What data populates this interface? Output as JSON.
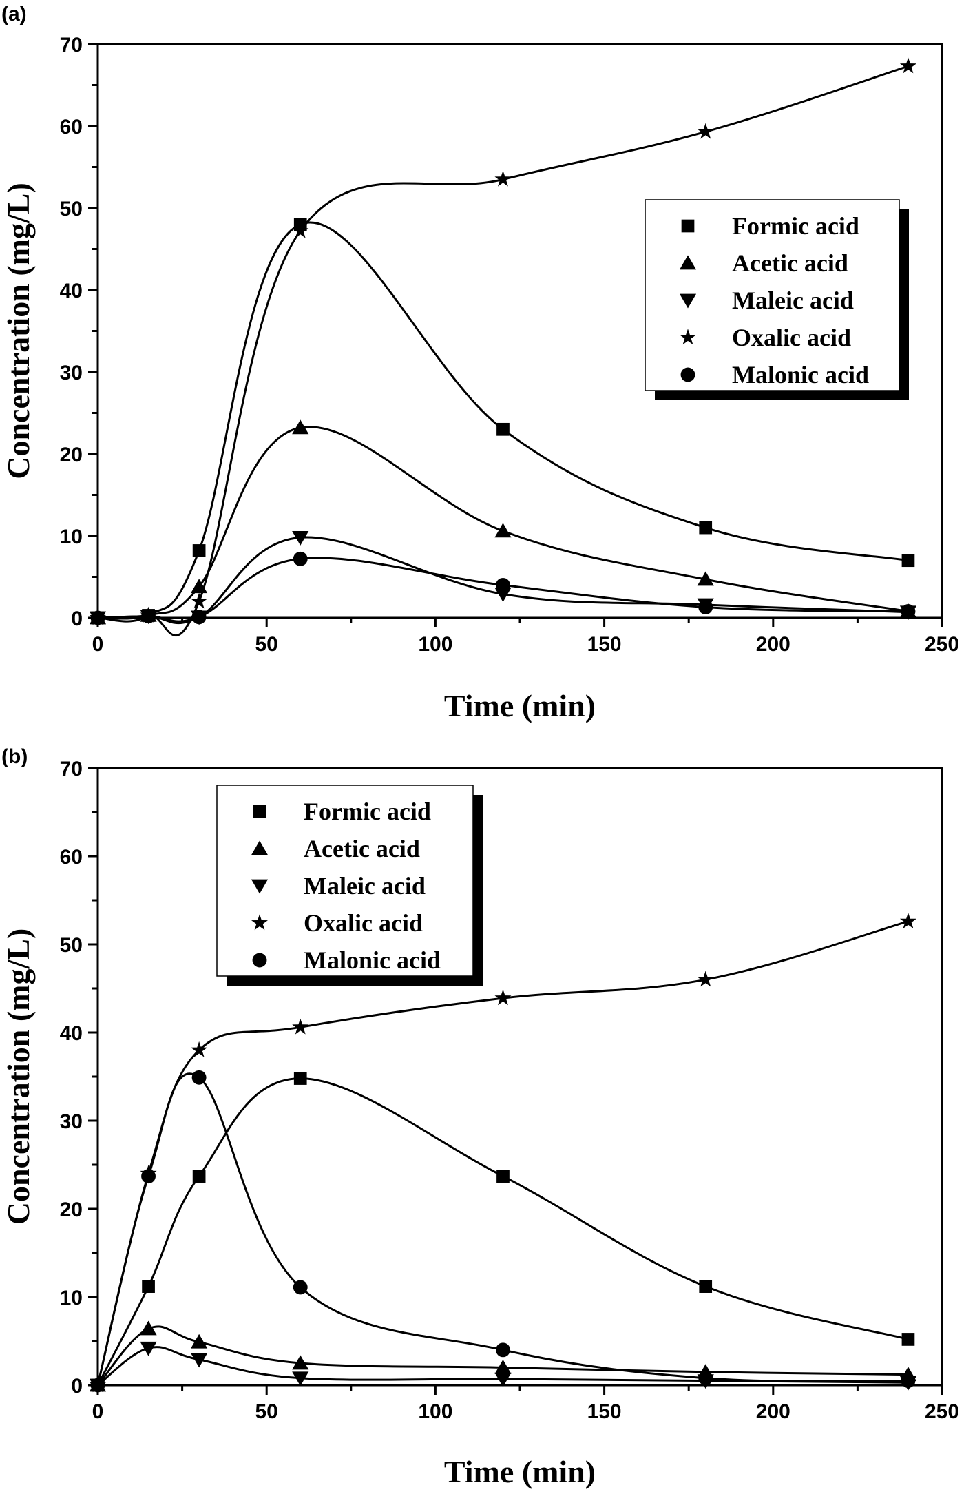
{
  "chart_data": [
    {
      "panel_label": "(a)",
      "type": "line",
      "xlabel": "Time (min)",
      "ylabel": "Concentration (mg/L)",
      "xlim": [
        0,
        250
      ],
      "ylim": [
        0,
        70
      ],
      "xticks": [
        "0",
        "50",
        "100",
        "150",
        "200",
        "250"
      ],
      "yticks": [
        "0",
        "10",
        "20",
        "30",
        "40",
        "50",
        "60",
        "70"
      ],
      "grid": false,
      "legend_placement": "center-right",
      "x": [
        0,
        15,
        30,
        60,
        120,
        180,
        240
      ],
      "series": [
        {
          "name": "Formic acid",
          "marker": "square",
          "values": [
            0,
            0.3,
            8.2,
            48.0,
            23.0,
            11.0,
            7.0
          ]
        },
        {
          "name": "Acetic acid",
          "marker": "triangle-up",
          "values": [
            0,
            0.3,
            3.8,
            23.2,
            10.6,
            4.7,
            0.8
          ]
        },
        {
          "name": "Maleic acid",
          "marker": "triangle-down",
          "values": [
            0,
            0.2,
            0.1,
            9.8,
            2.9,
            1.6,
            0.7
          ]
        },
        {
          "name": "Oxalic acid",
          "marker": "star",
          "values": [
            0,
            0.3,
            2.0,
            47.2,
            53.5,
            59.3,
            67.3
          ]
        },
        {
          "name": "Malonic acid",
          "marker": "circle",
          "values": [
            0,
            0.2,
            0.1,
            7.2,
            4.0,
            1.3,
            0.8
          ]
        }
      ]
    },
    {
      "panel_label": "(b)",
      "type": "line",
      "xlabel": "Time (min)",
      "ylabel": "Concentration (mg/L)",
      "xlim": [
        0,
        250
      ],
      "ylim": [
        0,
        70
      ],
      "xticks": [
        "0",
        "50",
        "100",
        "150",
        "200",
        "250"
      ],
      "yticks": [
        "0",
        "10",
        "20",
        "30",
        "40",
        "50",
        "60",
        "70"
      ],
      "grid": false,
      "legend_placement": "top-left",
      "x": [
        0,
        15,
        30,
        60,
        120,
        180,
        240
      ],
      "series": [
        {
          "name": "Formic acid",
          "marker": "square",
          "values": [
            0,
            11.2,
            23.7,
            34.8,
            23.7,
            11.2,
            5.2
          ]
        },
        {
          "name": "Acetic acid",
          "marker": "triangle-up",
          "values": [
            0,
            6.4,
            4.9,
            2.5,
            2.0,
            1.5,
            1.2
          ]
        },
        {
          "name": "Maleic acid",
          "marker": "triangle-down",
          "values": [
            0,
            4.2,
            2.9,
            0.8,
            0.7,
            0.5,
            0.3
          ]
        },
        {
          "name": "Oxalic acid",
          "marker": "star",
          "values": [
            0,
            24.0,
            38.0,
            40.6,
            43.9,
            46.0,
            52.6
          ]
        },
        {
          "name": "Malonic acid",
          "marker": "circle",
          "values": [
            0,
            23.7,
            34.9,
            11.1,
            4.0,
            0.8,
            0.5
          ]
        }
      ]
    }
  ],
  "colors": {
    "ink": "#000000",
    "background": "#ffffff"
  }
}
